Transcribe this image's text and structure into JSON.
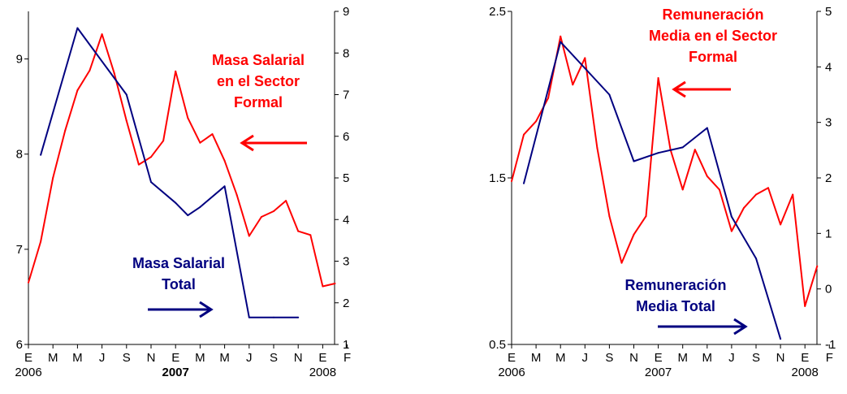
{
  "colors": {
    "red": "#ff0000",
    "navy": "#000080",
    "axis": "#000000"
  },
  "chart_data": [
    {
      "type": "line",
      "categories": [
        "E",
        "M",
        "M",
        "J",
        "S",
        "N",
        "E",
        "M",
        "M",
        "J",
        "S",
        "N",
        "E",
        "F"
      ],
      "year_labels": [
        {
          "text": "2006",
          "at": 0,
          "bold": false
        },
        {
          "text": "2007",
          "at": 6,
          "bold": true
        },
        {
          "text": "2008",
          "at": 12,
          "bold": false
        }
      ],
      "left_axis": {
        "ylim": [
          6,
          9.5
        ],
        "ticks": [
          "6",
          "7",
          "8",
          "9"
        ],
        "tick_values": [
          6,
          7,
          8,
          9
        ]
      },
      "right_axis": {
        "ylim": [
          1,
          9
        ],
        "ticks": [
          "1",
          "2",
          "3",
          "4",
          "5",
          "6",
          "7",
          "8",
          "9"
        ],
        "tick_values": [
          1,
          2,
          3,
          4,
          5,
          6,
          7,
          8,
          9
        ]
      },
      "series": [
        {
          "name": "Masa Salarial en el Sector Formal",
          "color_key": "red",
          "axis": "left",
          "x": [
            0,
            0.5,
            1,
            1.5,
            2,
            2.5,
            3,
            3.5,
            4,
            4.5,
            5,
            5.5,
            6,
            6.5,
            7,
            7.5,
            8,
            8.5,
            9,
            9.5,
            10,
            10.5,
            11,
            11.5,
            12,
            12.5
          ],
          "values": [
            6.65,
            7.08,
            7.75,
            8.25,
            8.67,
            8.88,
            9.26,
            8.85,
            8.35,
            7.89,
            7.97,
            8.14,
            8.87,
            8.38,
            8.12,
            8.21,
            7.93,
            7.57,
            7.14,
            7.34,
            7.4,
            7.51,
            7.19,
            7.15,
            6.61,
            6.64
          ]
        },
        {
          "name": "Masa Salarial Total",
          "color_key": "navy",
          "axis": "right",
          "x": [
            0.5,
            2,
            4,
            5,
            6,
            6.5,
            7,
            8,
            9,
            10,
            11
          ],
          "values": [
            5.55,
            8.6,
            7.0,
            4.9,
            4.4,
            4.1,
            4.3,
            4.8,
            1.65,
            1.65,
            1.65
          ]
        }
      ],
      "annotations": [
        {
          "lines": [
            "Masa Salarial",
            "en el Sector",
            "Formal"
          ],
          "color_key": "red",
          "arrow": "left"
        },
        {
          "lines": [
            "Masa Salarial",
            "Total"
          ],
          "color_key": "navy",
          "arrow": "right"
        }
      ]
    },
    {
      "type": "line",
      "categories": [
        "E",
        "M",
        "M",
        "J",
        "S",
        "N",
        "E",
        "M",
        "M",
        "J",
        "S",
        "N",
        "E",
        "F"
      ],
      "year_labels": [
        {
          "text": "2006",
          "at": 0,
          "bold": false
        },
        {
          "text": "2007",
          "at": 6,
          "bold": false
        },
        {
          "text": "2008",
          "at": 12,
          "bold": false
        }
      ],
      "left_axis": {
        "ylim": [
          0.5,
          2.5
        ],
        "ticks": [
          "0.5",
          "1.5",
          "2.5"
        ],
        "tick_values": [
          0.5,
          1.5,
          2.5
        ]
      },
      "right_axis": {
        "ylim": [
          -1,
          5
        ],
        "ticks": [
          "-1",
          "0",
          "1",
          "2",
          "3",
          "4",
          "5"
        ],
        "tick_values": [
          -1,
          0,
          1,
          2,
          3,
          4,
          5
        ]
      },
      "series": [
        {
          "name": "Remuneración Media en el Sector Formal",
          "color_key": "red",
          "axis": "left",
          "x": [
            0,
            0.5,
            1,
            1.5,
            2,
            2.5,
            3,
            3.5,
            4,
            4.5,
            5,
            5.5,
            6,
            6.5,
            7,
            7.5,
            8,
            8.5,
            9,
            9.5,
            10,
            10.5,
            11,
            11.5,
            12,
            12.5
          ],
          "values": [
            1.48,
            1.76,
            1.84,
            1.98,
            2.35,
            2.06,
            2.22,
            1.68,
            1.27,
            0.99,
            1.16,
            1.27,
            2.1,
            1.67,
            1.43,
            1.67,
            1.51,
            1.43,
            1.18,
            1.32,
            1.4,
            1.44,
            1.22,
            1.4,
            0.73,
            0.97
          ]
        },
        {
          "name": "Remuneración Media Total",
          "color_key": "navy",
          "axis": "right",
          "x": [
            0.5,
            2,
            4,
            5,
            6,
            7,
            8,
            9,
            10,
            11
          ],
          "values": [
            1.9,
            4.45,
            3.5,
            2.3,
            2.45,
            2.55,
            2.9,
            1.3,
            0.55,
            -0.9
          ]
        }
      ],
      "annotations": [
        {
          "lines": [
            "Remuneración",
            "Media en el Sector",
            "Formal"
          ],
          "color_key": "red",
          "arrow": "left"
        },
        {
          "lines": [
            "Remuneración",
            "Media Total"
          ],
          "color_key": "navy",
          "arrow": "right"
        }
      ]
    }
  ]
}
